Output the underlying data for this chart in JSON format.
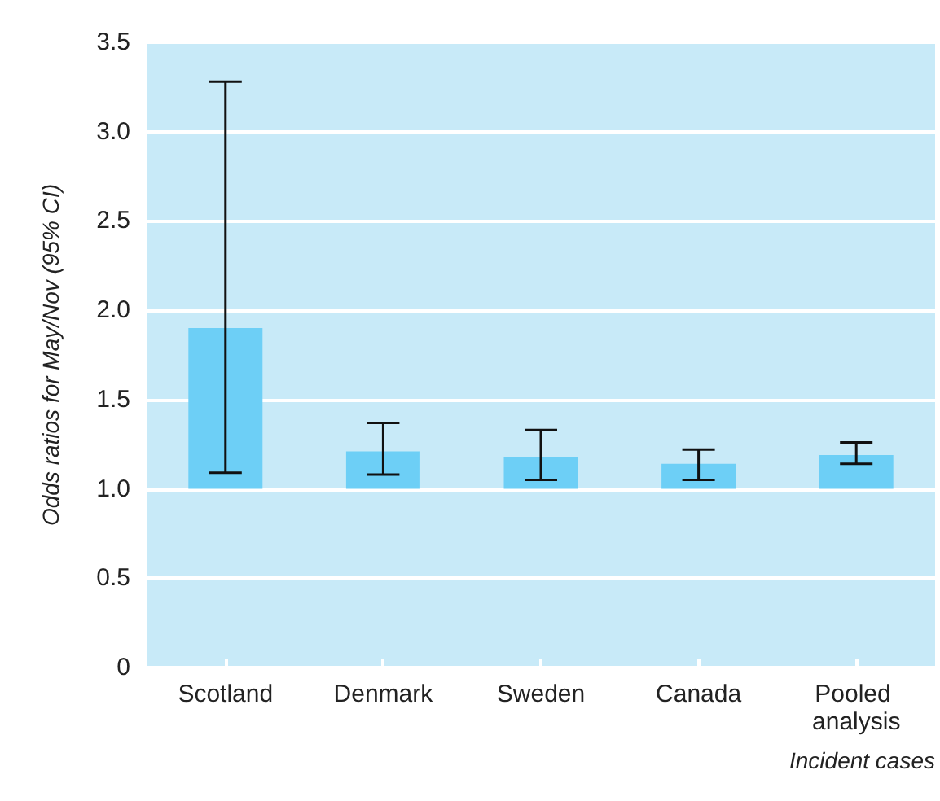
{
  "chart_data": {
    "type": "bar",
    "xlabel": "Incident cases",
    "ylabel": "Odds ratios for May/Nov (95% CI)",
    "categories": [
      "Scotland",
      "Denmark",
      "Sweden",
      "Canada",
      "Pooled analysis"
    ],
    "base": [
      1,
      1,
      1,
      1,
      1
    ],
    "values": [
      0.9,
      0.21,
      0.18,
      0.14,
      0.19
    ],
    "errors": [
      [
        1.09,
        3.28
      ],
      [
        1.08,
        1.37
      ],
      [
        1.05,
        1.33
      ],
      [
        1.05,
        1.22
      ],
      [
        1.14,
        1.26
      ]
    ],
    "color": "#6dcff6",
    "ylim": [
      0,
      3.5
    ],
    "yticks": [
      0,
      0.5,
      {
        "value": 1,
        "label": "1.0"
      },
      1.5,
      {
        "value": 2,
        "label": "2.0"
      },
      2.5,
      {
        "value": 3,
        "label": "3.0"
      },
      3.5
    ],
    "grid": "y",
    "legend": false
  }
}
